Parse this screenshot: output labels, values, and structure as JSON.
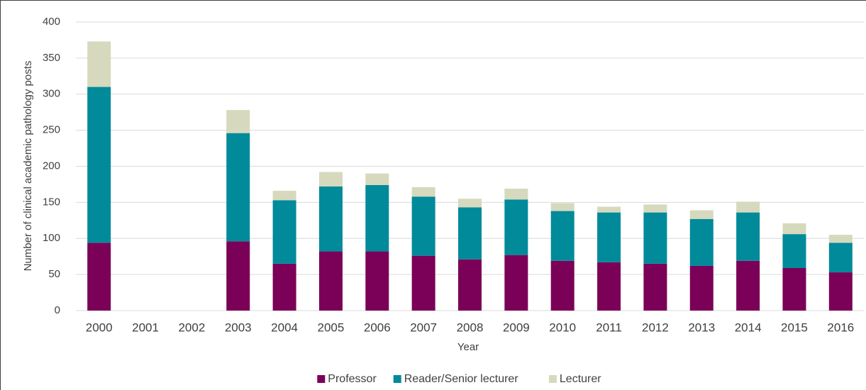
{
  "chart_data": {
    "type": "stacked_bar",
    "y_label": "Number of clinical academic pathology posts",
    "x_label": "Year",
    "categories": [
      "2000",
      "2001",
      "2002",
      "2003",
      "2004",
      "2005",
      "2006",
      "2007",
      "2008",
      "2009",
      "2010",
      "2011",
      "2012",
      "2013",
      "2014",
      "2015",
      "2016"
    ],
    "series": [
      {
        "name": "Professor",
        "color": "#7b0057",
        "values": [
          94,
          null,
          null,
          96,
          65,
          82,
          82,
          76,
          71,
          77,
          69,
          67,
          65,
          62,
          69,
          59,
          53
        ]
      },
      {
        "name": "Reader/Senior lecturer",
        "color": "#008a9a",
        "values": [
          216,
          null,
          null,
          150,
          88,
          90,
          92,
          82,
          72,
          77,
          69,
          69,
          71,
          65,
          67,
          47,
          41
        ]
      },
      {
        "name": "Lecturer",
        "color": "#d6d9bd",
        "values": [
          63,
          null,
          null,
          32,
          13,
          20,
          16,
          13,
          12,
          15,
          11,
          8,
          11,
          12,
          15,
          15,
          11
        ]
      }
    ],
    "ylim": [
      0,
      400
    ],
    "yticks": [
      0,
      50,
      100,
      150,
      200,
      250,
      300,
      350,
      400
    ],
    "grid": true,
    "legend": "bottom"
  }
}
